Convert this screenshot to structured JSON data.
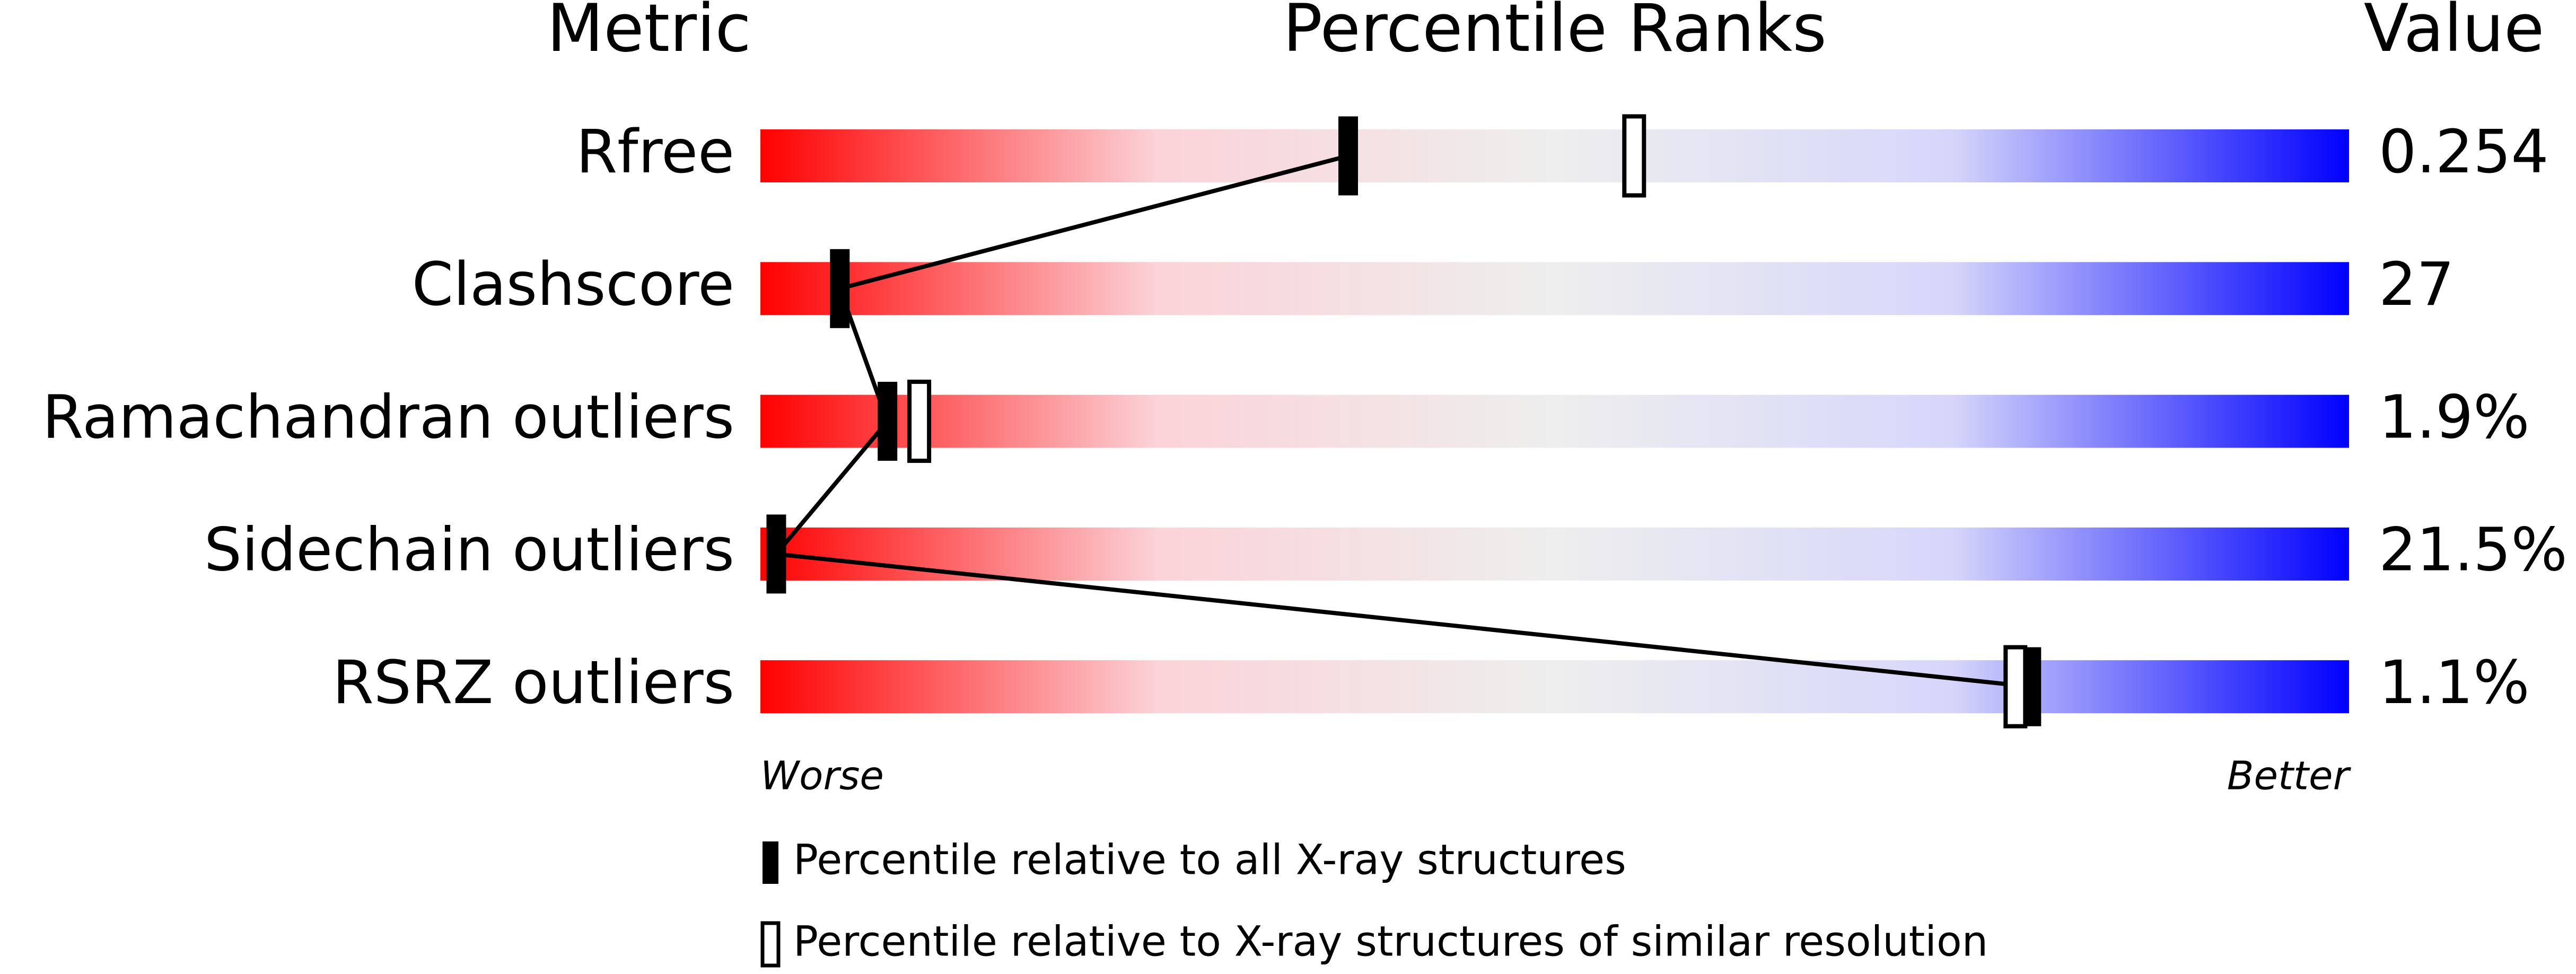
{
  "chart_data": {
    "type": "percentile-slider",
    "title": "Percentile Ranks",
    "metric_header": "Metric",
    "value_header": "Value",
    "categories": [
      "Rfree",
      "Clashscore",
      "Ramachandran outliers",
      "Sidechain outliers",
      "RSRZ outliers"
    ],
    "metric_values": [
      "0.254",
      "27",
      "1.9%",
      "21.5%",
      "1.1%"
    ],
    "series": [
      {
        "name": "Percentile relative to all X-ray structures",
        "color": "#000000",
        "filled": true,
        "values": [
          37,
          5,
          8,
          1,
          80
        ]
      },
      {
        "name": "Percentile relative to X-ray structures of similar resolution",
        "color": "#000000",
        "filled": false,
        "values": [
          55,
          null,
          10,
          null,
          79
        ]
      }
    ],
    "xlim": [
      0,
      100
    ],
    "worse_label": "Worse",
    "better_label": "Better",
    "gradient": [
      "#ff0000",
      "#fbd3d8",
      "#eeeeee",
      "#d6d6fb",
      "#0000ff"
    ]
  }
}
